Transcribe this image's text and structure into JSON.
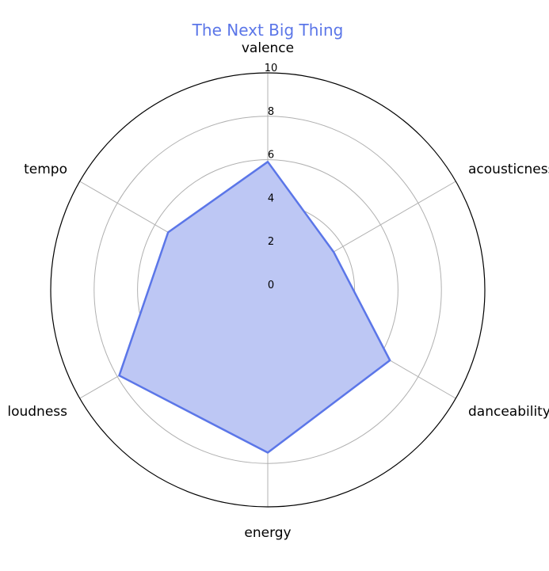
{
  "chart_data": {
    "type": "radar",
    "title": "The Next Big Thing",
    "axes": [
      "valence",
      "acousticness",
      "danceability",
      "energy",
      "loudness",
      "tempo"
    ],
    "series": [
      {
        "values": [
          5.9,
          3.5,
          6.5,
          7.5,
          7.9,
          5.3
        ]
      }
    ],
    "r_ticks": [
      "0",
      "2",
      "4",
      "6",
      "8",
      "10"
    ],
    "rlim": [
      0,
      10
    ],
    "grid": true,
    "colors": {
      "line": "#5b76e8",
      "fill": "#bdc7f4",
      "title": "#5b76e8",
      "grid": "#b0b0b0",
      "outer": "#000000"
    }
  }
}
